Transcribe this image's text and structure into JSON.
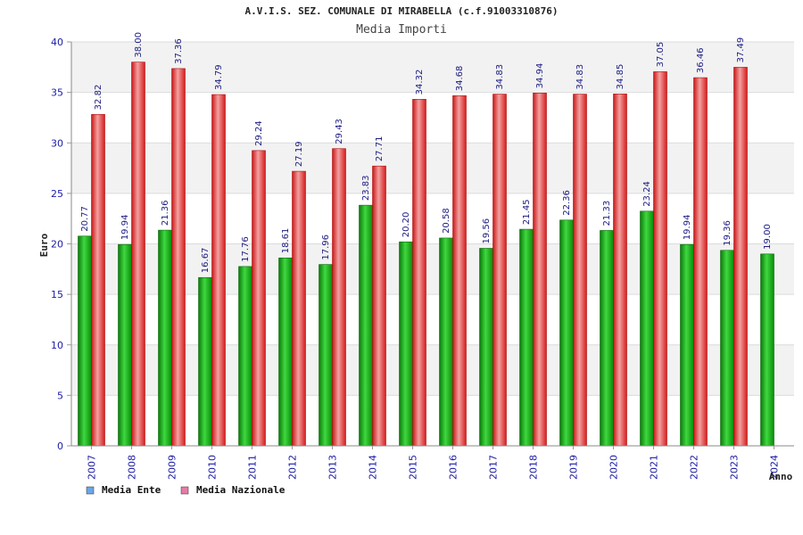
{
  "chart_data": {
    "type": "bar",
    "title": "A.V.I.S. SEZ. COMUNALE DI MIRABELLA (c.f.91003310876)",
    "subtitle": "Media Importi",
    "xlabel": "Anno",
    "ylabel": "Euro",
    "ylim": [
      0,
      40
    ],
    "yticks": [
      "0",
      "5",
      "10",
      "15",
      "20",
      "25",
      "30",
      "35",
      "40"
    ],
    "grid": true,
    "legend_position": "bottom-left",
    "categories": [
      "2007",
      "2008",
      "2009",
      "2010",
      "2011",
      "2012",
      "2013",
      "2014",
      "2015",
      "2016",
      "2017",
      "2018",
      "2019",
      "2020",
      "2021",
      "2022",
      "2023",
      "2024"
    ],
    "series": [
      {
        "name": "Media Ente",
        "legend_color": "#6aa6e8",
        "bar_color": "#16b416",
        "values": [
          20.77,
          19.94,
          21.36,
          16.67,
          17.76,
          18.61,
          17.96,
          23.83,
          20.2,
          20.58,
          19.56,
          21.45,
          22.36,
          21.33,
          23.24,
          19.94,
          19.36,
          19.0
        ],
        "labels": [
          "20.77",
          "19.94",
          "21.36",
          "16.67",
          "17.76",
          "18.61",
          "17.96",
          "23.83",
          "20.20",
          "20.58",
          "19.56",
          "21.45",
          "22.36",
          "21.33",
          "23.24",
          "19.94",
          "19.36",
          "19.00"
        ]
      },
      {
        "name": "Media Nazionale",
        "legend_color": "#e87aa8",
        "bar_color": "#ee2a2a",
        "values": [
          32.82,
          38.0,
          37.36,
          34.79,
          29.24,
          27.19,
          29.43,
          27.71,
          34.32,
          34.68,
          34.83,
          34.94,
          34.83,
          34.85,
          37.05,
          36.46,
          37.49,
          null
        ],
        "labels": [
          "32.82",
          "38.00",
          "37.36",
          "34.79",
          "29.24",
          "27.19",
          "29.43",
          "27.71",
          "34.32",
          "34.68",
          "34.83",
          "34.94",
          "34.83",
          "34.85",
          "37.05",
          "36.46",
          "37.49",
          ""
        ]
      }
    ]
  }
}
